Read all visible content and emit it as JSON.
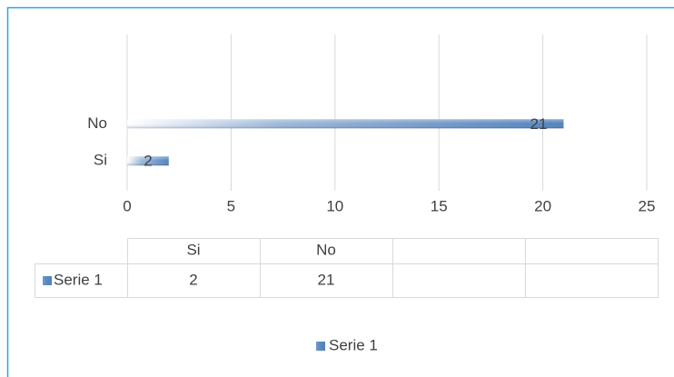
{
  "chart_data": {
    "type": "bar",
    "orientation": "horizontal",
    "categories": [
      "Si",
      "No"
    ],
    "series": [
      {
        "name": "Serie 1",
        "color": "#4f81bd",
        "values": [
          2,
          21
        ]
      }
    ],
    "xlim": [
      0,
      25
    ],
    "xticks": [
      0,
      5,
      10,
      15,
      20,
      25
    ],
    "grid": true,
    "data_table": true,
    "legend": "bottom"
  }
}
